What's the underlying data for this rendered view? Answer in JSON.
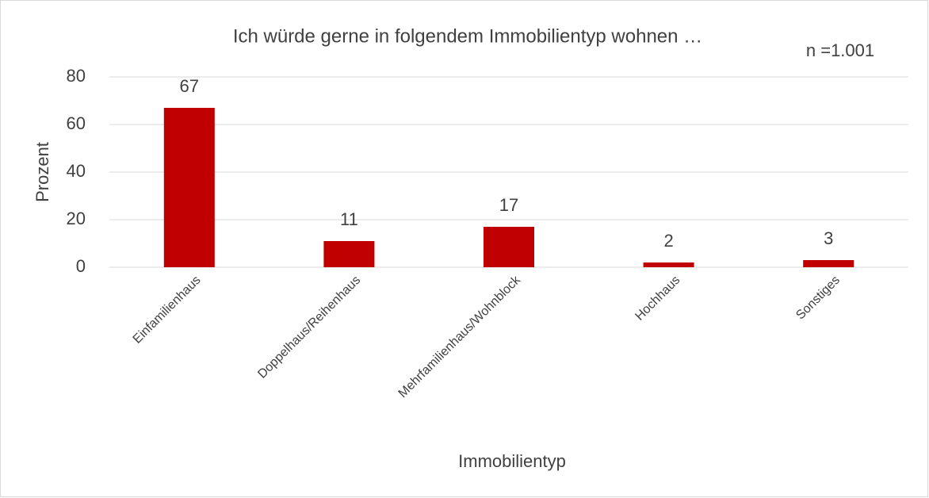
{
  "chart_data": {
    "type": "bar",
    "title": "Ich würde gerne in folgendem Immobilientyp wohnen …",
    "annotation": "n =1.001",
    "xlabel": "Immobilientyp",
    "ylabel": "Prozent",
    "categories": [
      "Einfamilienhaus",
      "Doppelhaus/Reihenhaus",
      "Mehrfamilienhaus/Wohnblock",
      "Hochhaus",
      "Sonstiges"
    ],
    "values": [
      67,
      11,
      17,
      2,
      3
    ],
    "color": "#c00000",
    "ylim": [
      0,
      80
    ],
    "yticks": [
      0,
      20,
      40,
      60,
      80
    ],
    "grid": true
  }
}
